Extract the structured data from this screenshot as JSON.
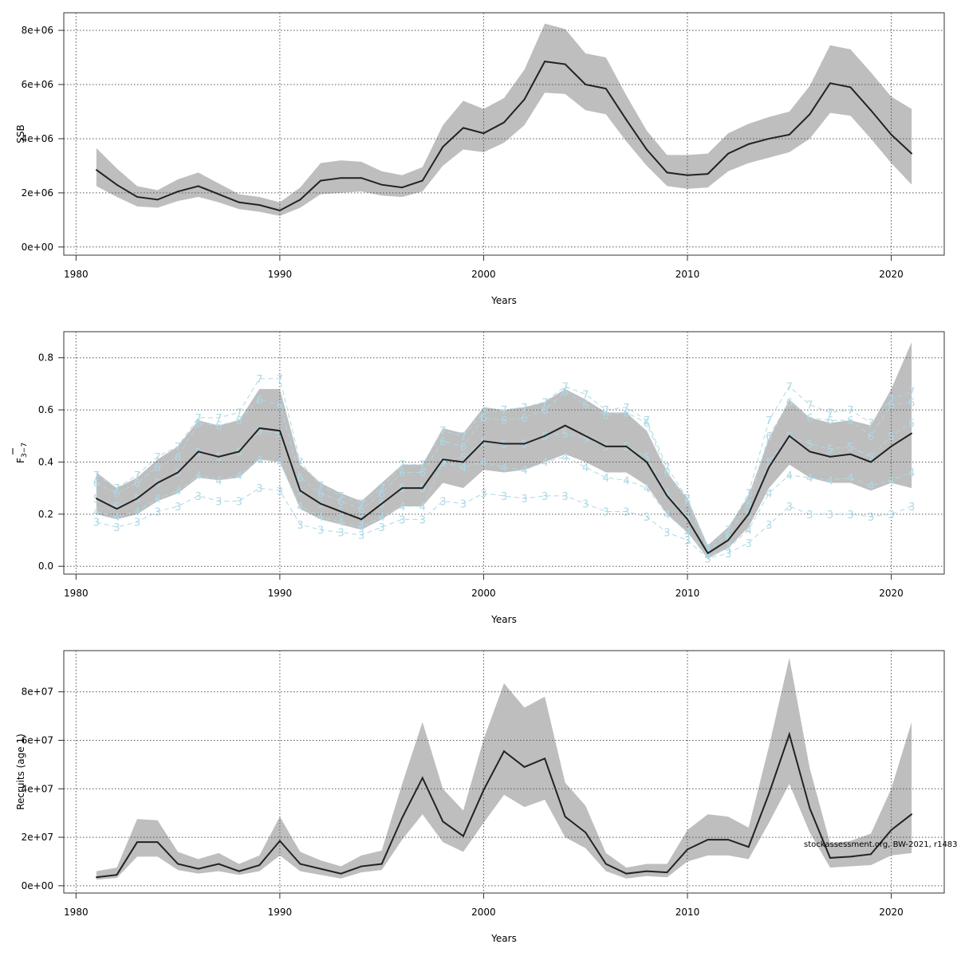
{
  "source_note": "stockassessment.org, BW-2021, r1483",
  "colors": {
    "band": "#bebebe",
    "line": "#222222",
    "grid": "#555555",
    "age_lines": "#add8e6"
  },
  "chart_data": [
    {
      "type": "line",
      "panel": "ssb",
      "title": "",
      "xlabel": "Years",
      "ylabel": "SSB",
      "ylabel_sub": "",
      "xlim": [
        1979.4,
        2022.6
      ],
      "ylim": [
        -300000,
        8650000
      ],
      "xticks": [
        1980,
        1990,
        2000,
        2010,
        2020
      ],
      "yticks": [
        0,
        2000000,
        4000000,
        6000000,
        8000000
      ],
      "ytick_labels": [
        "0e+00",
        "2e+06",
        "4e+06",
        "6e+06",
        "8e+06"
      ],
      "grid": true,
      "x": [
        1981,
        1982,
        1983,
        1984,
        1985,
        1986,
        1987,
        1988,
        1989,
        1990,
        1991,
        1992,
        1993,
        1994,
        1995,
        1996,
        1997,
        1998,
        1999,
        2000,
        2001,
        2002,
        2003,
        2004,
        2005,
        2006,
        2007,
        2008,
        2009,
        2010,
        2011,
        2012,
        2013,
        2014,
        2015,
        2016,
        2017,
        2018,
        2019,
        2020,
        2021
      ],
      "series": [
        {
          "role": "estimate",
          "values": [
            2850000,
            2300000,
            1850000,
            1750000,
            2050000,
            2250000,
            1950000,
            1650000,
            1550000,
            1350000,
            1750000,
            2450000,
            2550000,
            2550000,
            2300000,
            2200000,
            2450000,
            3700000,
            4400000,
            4200000,
            4600000,
            5450000,
            6850000,
            6750000,
            6000000,
            5850000,
            4700000,
            3600000,
            2750000,
            2650000,
            2700000,
            3450000,
            3800000,
            4000000,
            4150000,
            4900000,
            6050000,
            5900000,
            5050000,
            4150000,
            3450000
          ]
        },
        {
          "role": "lower",
          "values": [
            2250000,
            1850000,
            1500000,
            1450000,
            1700000,
            1850000,
            1650000,
            1400000,
            1300000,
            1150000,
            1450000,
            1950000,
            2000000,
            2050000,
            1900000,
            1850000,
            2050000,
            3000000,
            3600000,
            3500000,
            3850000,
            4500000,
            5700000,
            5650000,
            5050000,
            4900000,
            3900000,
            3000000,
            2250000,
            2150000,
            2200000,
            2800000,
            3100000,
            3300000,
            3500000,
            4000000,
            4950000,
            4850000,
            4000000,
            3100000,
            2300000
          ]
        },
        {
          "role": "upper",
          "values": [
            3650000,
            2900000,
            2250000,
            2100000,
            2500000,
            2750000,
            2350000,
            1950000,
            1850000,
            1650000,
            2200000,
            3100000,
            3200000,
            3150000,
            2800000,
            2650000,
            2950000,
            4500000,
            5400000,
            5100000,
            5500000,
            6550000,
            8250000,
            8050000,
            7150000,
            7000000,
            5600000,
            4300000,
            3400000,
            3400000,
            3450000,
            4200000,
            4550000,
            4800000,
            5000000,
            5950000,
            7450000,
            7300000,
            6450000,
            5550000,
            5100000
          ]
        }
      ]
    },
    {
      "type": "line",
      "panel": "fbar",
      "title": "",
      "xlabel": "Years",
      "ylabel": "F",
      "ylabel_sub": "3−7",
      "xlim": [
        1979.4,
        2022.6
      ],
      "ylim": [
        -0.03,
        0.9
      ],
      "xticks": [
        1980,
        1990,
        2000,
        2010,
        2020
      ],
      "yticks": [
        0,
        0.2,
        0.4,
        0.6,
        0.8
      ],
      "ytick_labels": [
        "0.0",
        "0.2",
        "0.4",
        "0.6",
        "0.8"
      ],
      "grid": true,
      "x": [
        1981,
        1982,
        1983,
        1984,
        1985,
        1986,
        1987,
        1988,
        1989,
        1990,
        1991,
        1992,
        1993,
        1994,
        1995,
        1996,
        1997,
        1998,
        1999,
        2000,
        2001,
        2002,
        2003,
        2004,
        2005,
        2006,
        2007,
        2008,
        2009,
        2010,
        2011,
        2012,
        2013,
        2014,
        2015,
        2016,
        2017,
        2018,
        2019,
        2020,
        2021
      ],
      "series": [
        {
          "role": "estimate",
          "values": [
            0.26,
            0.22,
            0.26,
            0.32,
            0.36,
            0.44,
            0.42,
            0.44,
            0.53,
            0.52,
            0.29,
            0.24,
            0.21,
            0.18,
            0.24,
            0.3,
            0.3,
            0.41,
            0.4,
            0.48,
            0.47,
            0.47,
            0.5,
            0.54,
            0.5,
            0.46,
            0.46,
            0.4,
            0.27,
            0.18,
            0.05,
            0.1,
            0.2,
            0.38,
            0.5,
            0.44,
            0.42,
            0.43,
            0.4,
            0.46,
            0.51
          ]
        },
        {
          "role": "lower",
          "values": [
            0.2,
            0.18,
            0.2,
            0.25,
            0.28,
            0.34,
            0.33,
            0.34,
            0.41,
            0.4,
            0.22,
            0.18,
            0.16,
            0.14,
            0.18,
            0.23,
            0.23,
            0.32,
            0.3,
            0.37,
            0.36,
            0.37,
            0.4,
            0.43,
            0.4,
            0.36,
            0.36,
            0.31,
            0.2,
            0.13,
            0.03,
            0.07,
            0.15,
            0.3,
            0.39,
            0.34,
            0.32,
            0.32,
            0.29,
            0.32,
            0.3
          ]
        },
        {
          "role": "upper",
          "values": [
            0.36,
            0.3,
            0.34,
            0.41,
            0.46,
            0.56,
            0.54,
            0.56,
            0.68,
            0.68,
            0.39,
            0.32,
            0.28,
            0.25,
            0.32,
            0.39,
            0.39,
            0.53,
            0.51,
            0.61,
            0.6,
            0.61,
            0.63,
            0.68,
            0.64,
            0.59,
            0.59,
            0.52,
            0.36,
            0.26,
            0.08,
            0.15,
            0.27,
            0.49,
            0.64,
            0.57,
            0.55,
            0.56,
            0.54,
            0.68,
            0.86
          ]
        }
      ],
      "age_lines": [
        {
          "label": "3",
          "values": [
            0.17,
            0.15,
            0.17,
            0.21,
            0.23,
            0.27,
            0.25,
            0.25,
            0.3,
            0.29,
            0.16,
            0.14,
            0.13,
            0.12,
            0.15,
            0.18,
            0.18,
            0.25,
            0.24,
            0.28,
            0.27,
            0.26,
            0.27,
            0.27,
            0.24,
            0.21,
            0.21,
            0.19,
            0.13,
            0.1,
            0.03,
            0.05,
            0.09,
            0.16,
            0.23,
            0.2,
            0.2,
            0.2,
            0.19,
            0.2,
            0.23
          ]
        },
        {
          "label": "4",
          "values": [
            0.21,
            0.19,
            0.21,
            0.26,
            0.29,
            0.35,
            0.33,
            0.35,
            0.41,
            0.4,
            0.23,
            0.19,
            0.17,
            0.15,
            0.19,
            0.23,
            0.23,
            0.4,
            0.38,
            0.4,
            0.38,
            0.37,
            0.4,
            0.42,
            0.38,
            0.34,
            0.33,
            0.3,
            0.2,
            0.13,
            0.04,
            0.07,
            0.14,
            0.28,
            0.35,
            0.34,
            0.33,
            0.34,
            0.31,
            0.33,
            0.36
          ]
        },
        {
          "label": "5",
          "values": [
            0.26,
            0.23,
            0.26,
            0.32,
            0.36,
            0.44,
            0.42,
            0.44,
            0.52,
            0.51,
            0.29,
            0.24,
            0.21,
            0.18,
            0.24,
            0.3,
            0.3,
            0.4,
            0.42,
            0.48,
            0.47,
            0.47,
            0.5,
            0.51,
            0.49,
            0.46,
            0.46,
            0.42,
            0.28,
            0.19,
            0.05,
            0.1,
            0.2,
            0.4,
            0.5,
            0.47,
            0.45,
            0.46,
            0.42,
            0.5,
            0.55
          ]
        },
        {
          "label": "6",
          "values": [
            0.32,
            0.28,
            0.32,
            0.38,
            0.42,
            0.55,
            0.54,
            0.56,
            0.64,
            0.62,
            0.34,
            0.28,
            0.25,
            0.22,
            0.28,
            0.36,
            0.36,
            0.48,
            0.46,
            0.57,
            0.56,
            0.57,
            0.6,
            0.67,
            0.62,
            0.58,
            0.59,
            0.55,
            0.36,
            0.25,
            0.06,
            0.12,
            0.24,
            0.5,
            0.63,
            0.57,
            0.56,
            0.56,
            0.5,
            0.62,
            0.63
          ]
        },
        {
          "label": "7",
          "values": [
            0.35,
            0.3,
            0.35,
            0.42,
            0.46,
            0.57,
            0.57,
            0.59,
            0.72,
            0.72,
            0.4,
            0.31,
            0.27,
            0.24,
            0.3,
            0.39,
            0.39,
            0.52,
            0.5,
            0.59,
            0.6,
            0.61,
            0.63,
            0.69,
            0.66,
            0.6,
            0.61,
            0.56,
            0.38,
            0.26,
            0.07,
            0.14,
            0.28,
            0.56,
            0.69,
            0.62,
            0.59,
            0.6,
            0.55,
            0.64,
            0.67
          ]
        }
      ]
    },
    {
      "type": "line",
      "panel": "recruits",
      "title": "",
      "xlabel": "Years",
      "ylabel": "Recruits (age 1)",
      "ylabel_sub": "",
      "xlim": [
        1979.4,
        2022.6
      ],
      "ylim": [
        -3000000,
        97000000
      ],
      "xticks": [
        1980,
        1990,
        2000,
        2010,
        2020
      ],
      "yticks": [
        0,
        20000000,
        40000000,
        60000000,
        80000000
      ],
      "ytick_labels": [
        "0e+00",
        "2e+07",
        "4e+07",
        "6e+07",
        "8e+07"
      ],
      "grid": true,
      "x": [
        1981,
        1982,
        1983,
        1984,
        1985,
        1986,
        1987,
        1988,
        1989,
        1990,
        1991,
        1992,
        1993,
        1994,
        1995,
        1996,
        1997,
        1998,
        1999,
        2000,
        2001,
        2002,
        2003,
        2004,
        2005,
        2006,
        2007,
        2008,
        2009,
        2010,
        2011,
        2012,
        2013,
        2014,
        2015,
        2016,
        2017,
        2018,
        2019,
        2020,
        2021
      ],
      "series": [
        {
          "role": "estimate",
          "values": [
            3500000,
            4500000,
            18000000,
            18000000,
            9000000,
            7000000,
            9000000,
            6000000,
            8500000,
            18500000,
            9000000,
            7000000,
            5000000,
            8000000,
            9000000,
            28000000,
            44500000,
            26500000,
            20500000,
            39500000,
            55500000,
            49000000,
            52500000,
            28500000,
            22000000,
            9000000,
            5000000,
            6000000,
            5500000,
            15000000,
            19000000,
            19000000,
            16000000,
            38000000,
            62500000,
            32000000,
            11500000,
            12000000,
            13000000,
            23000000,
            29500000
          ]
        },
        {
          "role": "lower",
          "values": [
            2500000,
            3200000,
            12000000,
            12000000,
            6500000,
            5000000,
            6000000,
            4500000,
            6000000,
            12500000,
            6000000,
            4500000,
            3000000,
            5500000,
            6500000,
            19000000,
            29500000,
            18000000,
            14000000,
            26000000,
            37500000,
            32500000,
            35500000,
            20000000,
            15500000,
            6000000,
            3000000,
            4000000,
            3500000,
            10000000,
            12500000,
            12500000,
            11000000,
            26000000,
            42000000,
            22000000,
            7500000,
            8000000,
            8500000,
            12500000,
            13500000
          ]
        },
        {
          "role": "upper",
          "values": [
            6000000,
            7500000,
            27500000,
            27000000,
            14000000,
            11000000,
            13500000,
            9000000,
            12500000,
            28500000,
            14000000,
            10500000,
            8000000,
            12500000,
            14500000,
            42000000,
            67500000,
            40000000,
            31000000,
            60500000,
            83500000,
            73500000,
            78000000,
            42500000,
            33000000,
            13500000,
            7500000,
            9000000,
            9000000,
            23000000,
            29500000,
            28500000,
            24000000,
            57500000,
            94000000,
            48500000,
            17500000,
            18500000,
            21500000,
            40000000,
            67500000
          ]
        }
      ]
    }
  ]
}
